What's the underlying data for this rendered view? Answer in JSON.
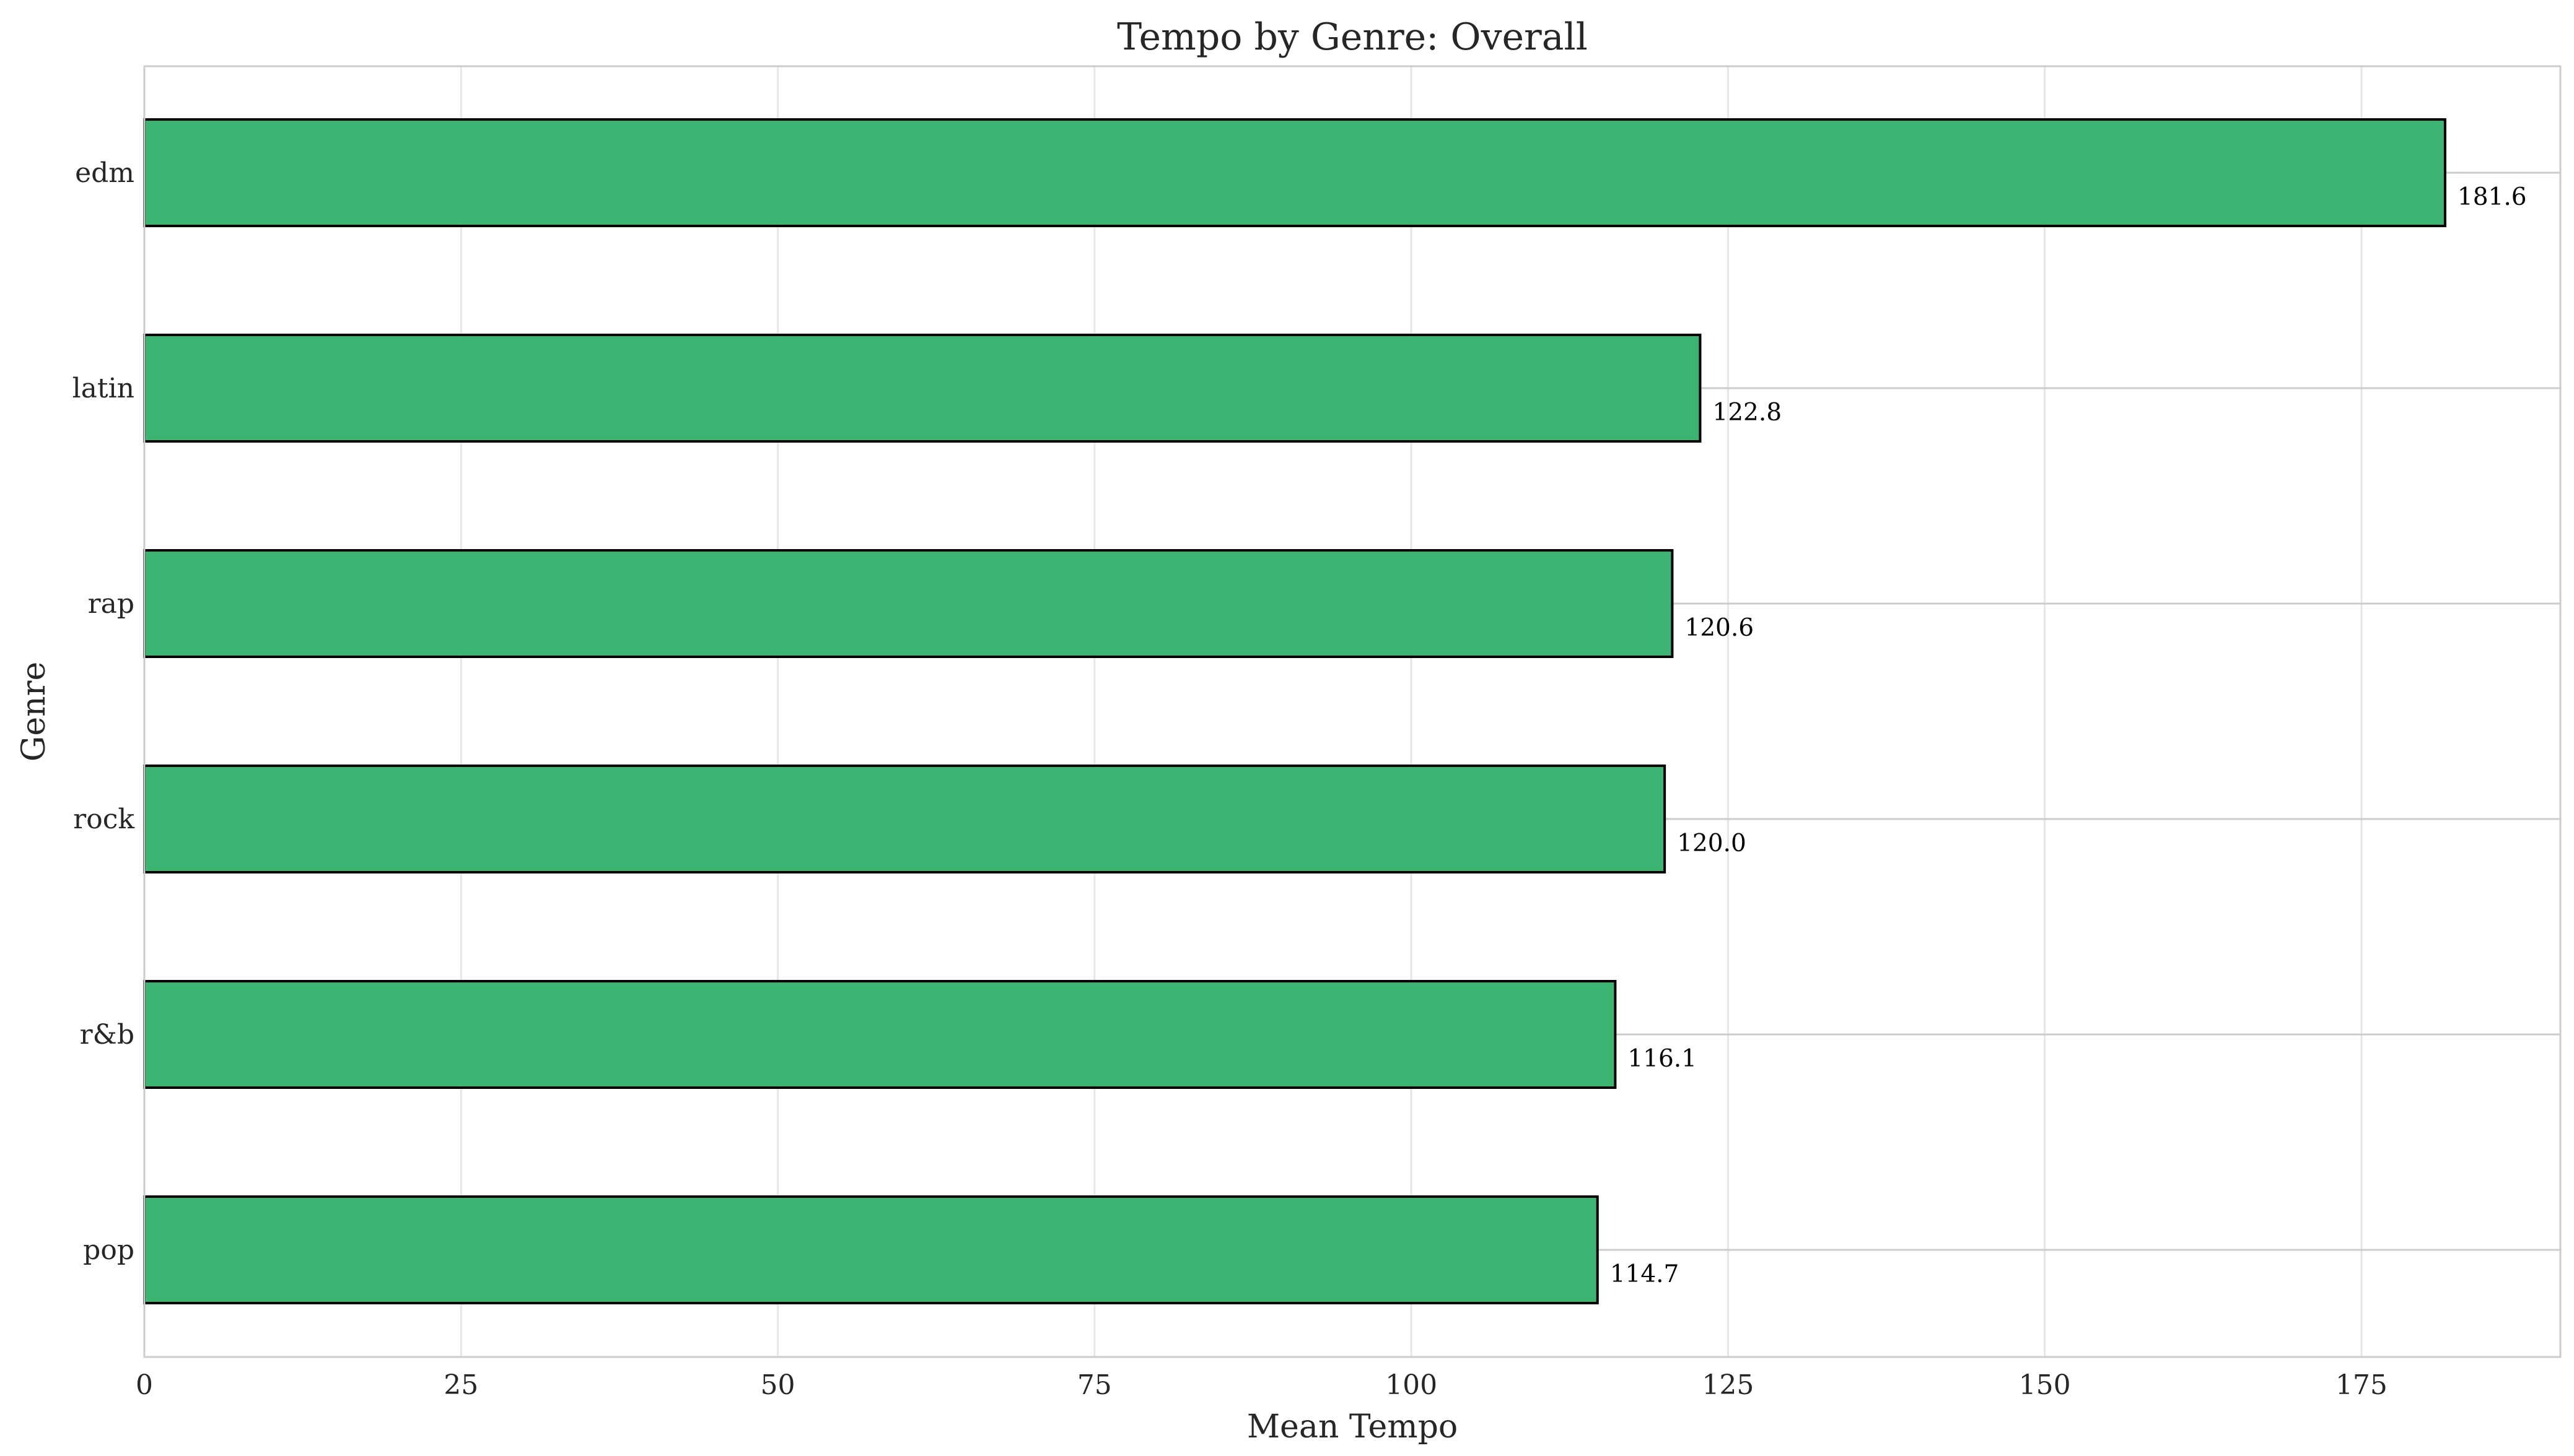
{
  "chart_data": {
    "type": "bar",
    "orientation": "horizontal",
    "title": "Tempo by Genre: Overall",
    "xlabel": "Mean Tempo",
    "ylabel": "Genre",
    "categories": [
      "edm",
      "latin",
      "rap",
      "rock",
      "r&b",
      "pop"
    ],
    "values": [
      181.6,
      122.8,
      120.6,
      120.0,
      116.1,
      114.7
    ],
    "value_labels": [
      "181.6",
      "122.8",
      "120.6",
      "120.0",
      "116.1",
      "114.7"
    ],
    "xlim": [
      0,
      190.7
    ],
    "xticks": [
      0,
      25,
      50,
      75,
      100,
      125,
      150,
      175
    ],
    "xtick_labels": [
      "0",
      "25",
      "50",
      "75",
      "100",
      "125",
      "150",
      "175"
    ],
    "grid": true,
    "bar_color": "#3CB371",
    "edge_color": "#000000"
  }
}
